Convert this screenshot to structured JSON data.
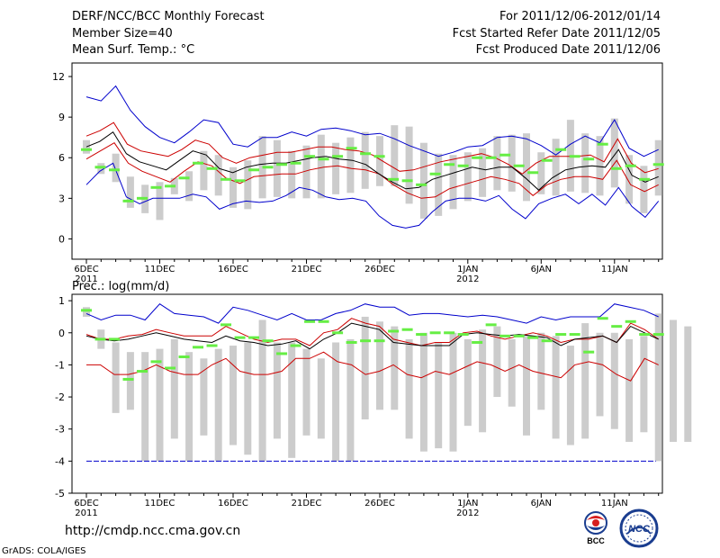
{
  "header": {
    "title": "DERF/NCC/BCC Monthly Forecast",
    "member_size": "Member Size=40",
    "variable": "Mean Surf. Temp.: °C",
    "period": "For 2011/12/06-2012/01/14",
    "start_date": "Fcst Started Refer Date 2011/12/05",
    "produced_date": "Fcst Produced Date 2011/12/06"
  },
  "footer": {
    "url": "http://cmdp.ncc.cma.gov.cn",
    "grads_credit": "GrADS: COLA/IGES",
    "logo_bcc_text": "BCC",
    "logo_ncc_text": "NCC"
  },
  "colors": {
    "max_line": "#0000cc",
    "sd_lines": "#cc0000",
    "mean_line": "#000000",
    "box": "#cccccc",
    "marker": "#66ee44",
    "threshold": "#0000cc"
  },
  "chart_data": [
    {
      "type": "box",
      "title": "Mean Surf. Temp.: °C",
      "x_tick_labels": [
        "6DEC\n2011",
        "11DEC",
        "16DEC",
        "21DEC",
        "26DEC",
        "1JAN\n2012",
        "6JAN",
        "11JAN"
      ],
      "x_tick_days": [
        0,
        5,
        10,
        15,
        20,
        26,
        31,
        36
      ],
      "n_days": 40,
      "ylim": [
        -1.5,
        13
      ],
      "yticks": [
        0,
        3,
        6,
        9,
        12
      ],
      "series": [
        {
          "name": "max",
          "values": [
            10.5,
            10.2,
            11.3,
            9.5,
            8.3,
            7.5,
            7.1,
            7.9,
            8.8,
            8.6,
            7.0,
            6.8,
            7.5,
            7.5,
            7.9,
            7.6,
            8.1,
            8.2,
            8.0,
            7.7,
            7.8,
            7.4,
            6.9,
            6.5,
            6.1,
            6.4,
            6.8,
            6.9,
            7.5,
            7.6,
            7.4,
            6.9,
            6.2,
            7.0,
            7.6,
            7.1,
            8.8,
            6.7,
            6.1,
            6.6
          ]
        },
        {
          "name": "sd_upper",
          "values": [
            7.6,
            8.0,
            8.6,
            7.0,
            6.5,
            6.3,
            6.1,
            6.6,
            7.3,
            7.0,
            6.0,
            5.6,
            6.0,
            6.2,
            6.4,
            6.4,
            6.6,
            6.8,
            6.8,
            6.6,
            6.5,
            6.2,
            5.6,
            5.0,
            5.1,
            5.4,
            5.7,
            5.9,
            6.1,
            6.3,
            6.0,
            5.5,
            4.8,
            5.6,
            6.1,
            6.1,
            6.1,
            6.2,
            5.7,
            7.4,
            5.6,
            4.9,
            5.2
          ]
        },
        {
          "name": "mean",
          "values": [
            6.8,
            7.2,
            7.9,
            6.3,
            5.7,
            5.4,
            5.1,
            5.8,
            6.5,
            6.2,
            5.2,
            4.9,
            5.3,
            5.5,
            5.6,
            5.6,
            5.8,
            6.0,
            6.1,
            5.9,
            5.8,
            5.5,
            4.8,
            4.2,
            3.7,
            3.8,
            4.4,
            4.7,
            5.0,
            5.3,
            5.1,
            5.3,
            5.3,
            4.5,
            3.6,
            4.5,
            5.1,
            5.3,
            5.4,
            5.3,
            6.6,
            4.7,
            4.2,
            4.6
          ]
        },
        {
          "name": "sd_lower",
          "values": [
            5.9,
            6.5,
            7.1,
            5.6,
            5.0,
            4.6,
            4.2,
            5.0,
            5.7,
            5.4,
            4.5,
            4.1,
            4.6,
            4.7,
            4.8,
            4.8,
            5.1,
            5.3,
            5.4,
            5.2,
            5.1,
            4.8,
            4.0,
            3.4,
            3.0,
            3.1,
            3.7,
            4.0,
            4.3,
            4.6,
            4.4,
            4.1,
            3.2,
            4.0,
            4.4,
            4.6,
            4.6,
            4.4,
            5.8,
            4.0,
            3.5,
            4.0
          ]
        },
        {
          "name": "min",
          "values": [
            4.0,
            5.0,
            5.6,
            3.1,
            2.6,
            3.0,
            3.0,
            3.0,
            3.3,
            3.1,
            2.2,
            2.6,
            2.8,
            2.7,
            2.8,
            3.2,
            3.8,
            3.6,
            3.1,
            2.9,
            3.0,
            2.8,
            1.7,
            1.0,
            0.8,
            1.0,
            2.0,
            2.8,
            3.0,
            3.0,
            2.8,
            3.2,
            2.2,
            1.5,
            2.6,
            3.0,
            3.3,
            2.6,
            3.3,
            2.5,
            3.8,
            2.4,
            1.6,
            2.8
          ]
        },
        {
          "name": "box_upper",
          "values": [
            7.3,
            5.6,
            6.3,
            4.6,
            4.0,
            4.2,
            4.5,
            5.0,
            6.5,
            6.2,
            5.3,
            5.8,
            7.6,
            7.3,
            6.5,
            6.9,
            7.7,
            7.1,
            7.5,
            7.9,
            7.6,
            8.4,
            8.3,
            7.1,
            6.3,
            6.2,
            6.4,
            6.7,
            7.6,
            7.7,
            7.8,
            6.4,
            7.4,
            8.8,
            7.8,
            7.6,
            8.9,
            6.2,
            5.4,
            7.3
          ]
        },
        {
          "name": "box_lower",
          "values": [
            6.3,
            4.8,
            4.2,
            2.3,
            1.9,
            1.4,
            3.3,
            2.8,
            3.6,
            3.2,
            2.3,
            2.2,
            3.0,
            3.1,
            3.0,
            3.0,
            3.0,
            3.3,
            3.4,
            3.7,
            3.9,
            3.9,
            2.6,
            1.5,
            1.7,
            2.2,
            2.8,
            3.1,
            3.6,
            3.5,
            2.8,
            3.3,
            3.2,
            3.5,
            3.4,
            3.2,
            3.8,
            2.6,
            1.9,
            3.2
          ]
        },
        {
          "name": "observed_marker",
          "values": [
            6.6,
            5.3,
            5.1,
            2.8,
            3.0,
            3.8,
            3.9,
            4.5,
            5.6,
            5.2,
            4.4,
            4.3,
            5.1,
            5.3,
            5.5,
            5.6,
            6.1,
            5.9,
            6.1,
            6.7,
            6.3,
            6.1,
            4.4,
            4.3,
            4.0,
            4.8,
            5.5,
            5.4,
            6.0,
            6.0,
            6.2,
            5.4,
            4.9,
            5.8,
            6.6,
            6.1,
            5.9,
            7.0,
            5.2,
            5.4,
            4.4,
            5.5
          ]
        }
      ]
    },
    {
      "type": "box",
      "title": "Prec.: log(mm/d)",
      "x_tick_labels": [
        "6DEC\n2011",
        "11DEC",
        "16DEC",
        "21DEC",
        "26DEC",
        "1JAN\n2012",
        "6JAN",
        "11JAN"
      ],
      "x_tick_days": [
        0,
        5,
        10,
        15,
        20,
        26,
        31,
        36
      ],
      "n_days": 40,
      "ylim": [
        -5,
        1.2
      ],
      "yticks": [
        -5,
        -4,
        -3,
        -2,
        -1,
        0,
        1
      ],
      "threshold": -4,
      "series": [
        {
          "name": "max",
          "values": [
            0.6,
            0.4,
            0.55,
            0.55,
            0.4,
            0.9,
            0.6,
            0.55,
            0.5,
            0.3,
            0.8,
            0.7,
            0.55,
            0.4,
            0.6,
            0.4,
            0.4,
            0.6,
            0.7,
            0.9,
            0.8,
            0.8,
            0.55,
            0.6,
            0.6,
            0.55,
            0.5,
            0.55,
            0.5,
            0.4,
            0.3,
            0.5,
            0.4,
            0.5,
            0.5,
            0.5,
            0.9,
            0.8,
            0.7,
            0.5
          ]
        },
        {
          "name": "sd_upper",
          "values": [
            -0.05,
            -0.2,
            -0.2,
            -0.1,
            -0.05,
            0.1,
            0.0,
            -0.1,
            -0.1,
            -0.1,
            0.2,
            0.0,
            -0.2,
            -0.3,
            -0.2,
            -0.2,
            -0.4,
            0.0,
            0.1,
            0.45,
            0.3,
            0.2,
            -0.2,
            -0.3,
            -0.4,
            -0.3,
            -0.3,
            0.0,
            0.05,
            -0.1,
            -0.2,
            -0.1,
            0.0,
            -0.1,
            -0.3,
            -0.2,
            -0.2,
            -0.1,
            -0.3,
            0.3,
            0.1,
            -0.2
          ]
        },
        {
          "name": "mean",
          "values": [
            -0.1,
            -0.2,
            -0.25,
            -0.2,
            -0.1,
            0.0,
            -0.1,
            -0.2,
            -0.25,
            -0.3,
            -0.1,
            -0.25,
            -0.3,
            -0.4,
            -0.35,
            -0.25,
            -0.5,
            -0.2,
            0.0,
            0.3,
            0.2,
            0.1,
            -0.3,
            -0.35,
            -0.4,
            -0.4,
            -0.4,
            -0.05,
            0.0,
            -0.05,
            -0.1,
            -0.05,
            -0.1,
            -0.15,
            -0.4,
            -0.2,
            -0.15,
            -0.1,
            -0.3,
            0.2,
            0.0,
            -0.2
          ]
        },
        {
          "name": "sd_lower",
          "values": [
            -1.0,
            -1.0,
            -1.3,
            -1.3,
            -1.2,
            -1.0,
            -1.2,
            -1.3,
            -1.3,
            -1.0,
            -0.8,
            -1.2,
            -1.3,
            -1.3,
            -1.2,
            -0.8,
            -0.8,
            -0.6,
            -0.9,
            -1.0,
            -1.3,
            -1.2,
            -1.0,
            -1.3,
            -1.4,
            -1.2,
            -1.3,
            -1.1,
            -0.9,
            -1.0,
            -1.2,
            -1.0,
            -1.2,
            -1.3,
            -1.4,
            -1.0,
            -0.9,
            -1.0,
            -1.3,
            -1.5,
            -0.8,
            -1.0
          ]
        },
        {
          "name": "box_upper",
          "values": [
            0.8,
            0.1,
            -0.3,
            -0.6,
            -0.6,
            -0.5,
            -0.2,
            -0.6,
            -0.8,
            -0.5,
            -0.4,
            -0.3,
            0.4,
            -0.3,
            -0.3,
            -0.5,
            -0.8,
            -0.3,
            -0.2,
            0.5,
            0.35,
            0.2,
            -0.2,
            0.0,
            -0.3,
            0.0,
            -0.2,
            0.1,
            0.2,
            -0.2,
            -0.1,
            0.0,
            -0.1,
            -0.4,
            0.3,
            0.0,
            0.0,
            -0.2,
            -0.1,
            0.6,
            0.4,
            0.2
          ]
        },
        {
          "name": "box_lower",
          "values": [
            0.5,
            -0.5,
            -2.5,
            -2.3,
            -3.3,
            -1.4,
            -1.9,
            -3.3,
            -3.2,
            -2.5,
            -3.4,
            -2.7,
            -3.2,
            -3.0,
            -2.9,
            -2.7,
            -1.7,
            -3.2,
            -3.2,
            -1.7,
            -2.1,
            -2.1,
            -1.9,
            -3.0,
            -2.6,
            -2.8,
            -2.0,
            -1.9,
            -1.1,
            -1.3,
            -1.8,
            -1.4,
            -1.2,
            -2.7,
            -1.1,
            -1.6,
            -0.9,
            -0.6,
            -0.6,
            -2.0,
            -3.4,
            -1.0
          ]
        },
        {
          "name": "box_floor",
          "values": [
            0.5,
            -0.5,
            -2.5,
            -2.4,
            -4.0,
            -4.0,
            -3.3,
            -4.0,
            -3.2,
            -4.0,
            -3.5,
            -3.8,
            -4.0,
            -3.3,
            -3.9,
            -3.2,
            -3.3,
            -4.0,
            -4.0,
            -2.7,
            -2.4,
            -2.4,
            -3.3,
            -3.7,
            -3.6,
            -3.7,
            -2.9,
            -3.1,
            -2.0,
            -2.3,
            -3.2,
            -2.4,
            -3.3,
            -3.5,
            -3.3,
            -2.6,
            -3.0,
            -3.4,
            -3.1,
            -4.0,
            -3.0,
            -3.4
          ]
        },
        {
          "name": "observed_marker",
          "values": [
            0.7,
            -0.2,
            -0.2,
            -1.45,
            -1.2,
            -0.9,
            -1.1,
            -0.75,
            -0.45,
            -0.4,
            0.25,
            -0.15,
            -0.15,
            -0.25,
            -0.65,
            -0.4,
            0.35,
            0.35,
            0.0,
            -0.3,
            -0.25,
            -0.25,
            0.05,
            0.1,
            -0.05,
            0.0,
            0.0,
            -0.05,
            -0.3,
            0.25,
            -0.1,
            -0.1,
            -0.15,
            -0.25,
            -0.05,
            -0.05,
            -0.6,
            0.45,
            0.2,
            0.35,
            -0.05,
            -0.05
          ]
        }
      ]
    }
  ]
}
